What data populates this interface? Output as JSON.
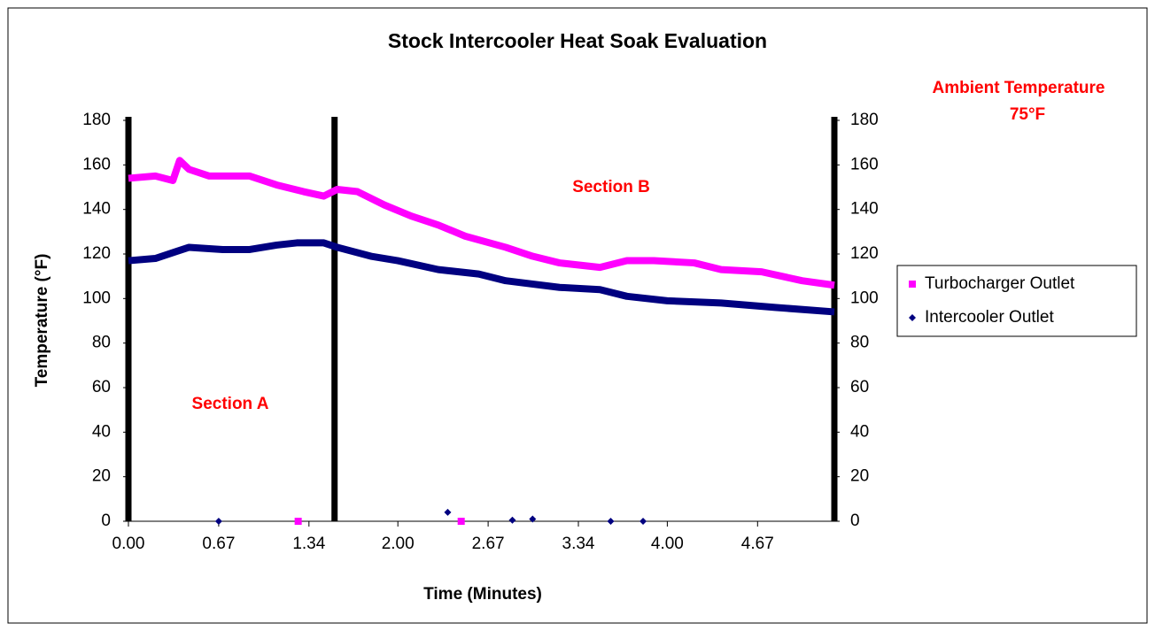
{
  "chart_data": {
    "type": "line",
    "title": "Stock Intercooler Heat Soak Evaluation",
    "xlabel": "Time (Minutes)",
    "ylabel": "Temperature (°F)",
    "annotations": [
      "Section A",
      "Section B",
      "Ambient Temperature",
      "75°F"
    ],
    "section_lines": [
      0,
      1.53,
      5.24
    ],
    "xlim": [
      0,
      5.24
    ],
    "xticks": [
      {
        "value": 0,
        "label": "0.00"
      },
      0.67,
      1.34,
      {
        "value": 2,
        "label": "2.00"
      },
      2.67,
      3.34,
      {
        "value": 4,
        "label": "4.00"
      },
      4.67
    ],
    "ylim": [
      0,
      180
    ],
    "yticks": [
      0,
      20,
      40,
      60,
      80,
      100,
      120,
      140,
      160,
      180
    ],
    "y2lim": [
      0,
      180
    ],
    "y2ticks": [
      0,
      20,
      40,
      60,
      80,
      100,
      120,
      140,
      160,
      180
    ],
    "legend": "right",
    "series": [
      {
        "name": "Turbocharger Outlet",
        "color": "#ff00ff",
        "marker": "square",
        "x": [
          0,
          0.2,
          0.33,
          0.38,
          0.45,
          0.6,
          0.9,
          1.1,
          1.3,
          1.45,
          1.55,
          1.7,
          1.9,
          2.1,
          2.3,
          2.5,
          2.8,
          3.0,
          3.2,
          3.5,
          3.7,
          3.9,
          4.2,
          4.4,
          4.7,
          5.0,
          5.24
        ],
        "values": [
          154,
          155,
          153,
          162,
          158,
          155,
          155,
          151,
          148,
          146,
          149,
          148,
          142,
          137,
          133,
          128,
          123,
          119,
          116,
          114,
          117,
          117,
          116,
          113,
          112,
          108,
          106
        ],
        "stray_x": [
          1.26,
          2.47
        ],
        "stray_values": [
          0,
          0
        ]
      },
      {
        "name": "Intercooler Outlet",
        "color": "#000080",
        "marker": "diamond",
        "x": [
          0,
          0.2,
          0.35,
          0.45,
          0.7,
          0.9,
          1.1,
          1.25,
          1.45,
          1.55,
          1.8,
          2.0,
          2.3,
          2.6,
          2.8,
          3.2,
          3.5,
          3.7,
          4.0,
          4.4,
          4.8,
          5.24
        ],
        "values": [
          117,
          118,
          121,
          123,
          122,
          122,
          124,
          125,
          125,
          123,
          119,
          117,
          113,
          111,
          108,
          105,
          104,
          101,
          99,
          98,
          96,
          94
        ],
        "stray_x": [
          0.67,
          2.37,
          2.85,
          3.0,
          3.58,
          3.82
        ],
        "stray_values": [
          0,
          4,
          0.5,
          1,
          0,
          0
        ]
      }
    ]
  }
}
